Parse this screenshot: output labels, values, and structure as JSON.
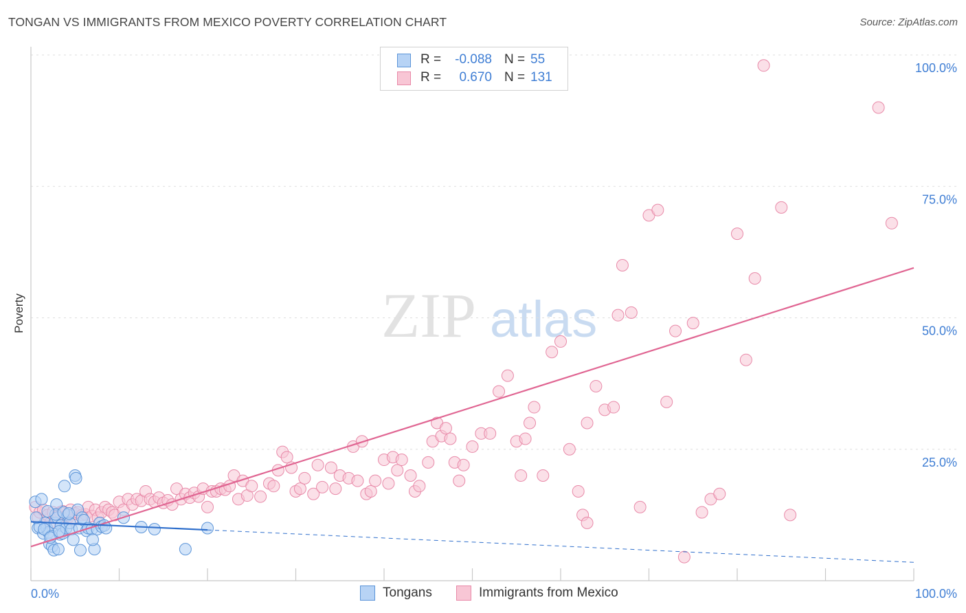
{
  "header": {
    "title": "TONGAN VS IMMIGRANTS FROM MEXICO POVERTY CORRELATION CHART",
    "source": "Source: ZipAtlas.com"
  },
  "watermark": {
    "zip": "ZIP",
    "atlas": "atlas"
  },
  "stats_legend": {
    "rows": [
      {
        "r_label": "R =",
        "r_value": "-0.088",
        "n_label": "N =",
        "n_value": "55"
      },
      {
        "r_label": "R =",
        "r_value": "0.670",
        "n_label": "N =",
        "n_value": "131"
      }
    ]
  },
  "bottom_legend": {
    "items": [
      "Tongans",
      "Immigrants from Mexico"
    ]
  },
  "colors": {
    "blue_fill": "#b7d3f5",
    "blue_stroke": "#5b94d8",
    "blue_line": "#2f6fcc",
    "pink_fill": "#f8c6d5",
    "pink_stroke": "#e889a8",
    "pink_line": "#e06592",
    "accent_text": "#3f7ed4"
  },
  "chart_data": {
    "type": "scatter",
    "ylabel": "Poverty",
    "xlim": [
      0,
      100
    ],
    "ylim": [
      0,
      100
    ],
    "x_tick_labels": [
      "0.0%",
      "100.0%"
    ],
    "y_tick_labels": [
      "100.0%",
      "75.0%",
      "50.0%",
      "25.0%"
    ],
    "y_ticks": [
      100,
      75,
      50,
      25
    ],
    "grid": true,
    "series": [
      {
        "name": "Tongans",
        "r": -0.088,
        "n": 55,
        "trend": {
          "x0": 0,
          "y0": 11.2,
          "x1": 100,
          "y1": 3.5,
          "solid_until": 20
        },
        "points": [
          [
            0.5,
            15
          ],
          [
            0.8,
            10
          ],
          [
            1.2,
            15.5
          ],
          [
            1.4,
            9
          ],
          [
            1.6,
            11
          ],
          [
            1.8,
            10
          ],
          [
            2,
            9.2
          ],
          [
            2.1,
            7
          ],
          [
            2.3,
            8.5
          ],
          [
            2.4,
            6.5
          ],
          [
            2.6,
            5.8
          ],
          [
            2.7,
            11
          ],
          [
            2.9,
            14.5
          ],
          [
            3,
            12
          ],
          [
            3.1,
            6
          ],
          [
            3.3,
            8.8
          ],
          [
            3.4,
            10.5
          ],
          [
            3.6,
            9
          ],
          [
            3.8,
            18
          ],
          [
            4,
            10
          ],
          [
            4.2,
            12.5
          ],
          [
            4.4,
            11
          ],
          [
            4.6,
            9.8
          ],
          [
            4.8,
            7.8
          ],
          [
            5,
            20
          ],
          [
            5.1,
            19.5
          ],
          [
            5.3,
            13.5
          ],
          [
            5.5,
            10
          ],
          [
            5.6,
            5.8
          ],
          [
            5.8,
            12
          ],
          [
            6,
            11.5
          ],
          [
            6.3,
            9.5
          ],
          [
            6.5,
            10
          ],
          [
            6.9,
            9.8
          ],
          [
            7.2,
            6
          ],
          [
            7.5,
            9.8
          ],
          [
            7.8,
            11
          ],
          [
            8,
            10.3
          ],
          [
            8.3,
            10.5
          ],
          [
            8.5,
            10
          ],
          [
            1,
            10.2
          ],
          [
            1.5,
            9.8
          ],
          [
            2.2,
            8.2
          ],
          [
            2.8,
            12.6
          ],
          [
            3.2,
            9.4
          ],
          [
            3.7,
            13
          ],
          [
            4.3,
            12.8
          ],
          [
            0.6,
            12
          ],
          [
            1.9,
            13.2
          ],
          [
            7,
            7.8
          ],
          [
            10.5,
            12
          ],
          [
            12.5,
            10.2
          ],
          [
            14,
            9.8
          ],
          [
            17.5,
            6
          ],
          [
            20,
            10
          ]
        ]
      },
      {
        "name": "Immigrants from Mexico",
        "r": 0.67,
        "n": 131,
        "trend": {
          "x0": 0,
          "y0": 6.5,
          "x1": 100,
          "y1": 59.5
        },
        "points": [
          [
            0.5,
            14
          ],
          [
            0.8,
            12
          ],
          [
            1,
            13
          ],
          [
            1.4,
            13.5
          ],
          [
            1.6,
            11
          ],
          [
            1.9,
            12.5
          ],
          [
            2.2,
            11
          ],
          [
            2.5,
            13
          ],
          [
            2.8,
            12
          ],
          [
            3.1,
            12.7
          ],
          [
            3.3,
            13
          ],
          [
            3.6,
            13.2
          ],
          [
            3.9,
            12.2
          ],
          [
            4.2,
            12
          ],
          [
            4.5,
            13.5
          ],
          [
            4.7,
            11.5
          ],
          [
            5,
            12.8
          ],
          [
            5.3,
            13
          ],
          [
            5.8,
            12.5
          ],
          [
            6.2,
            12.6
          ],
          [
            6.5,
            14
          ],
          [
            6.9,
            12.3
          ],
          [
            7.3,
            13.5
          ],
          [
            7.6,
            12
          ],
          [
            8,
            13
          ],
          [
            8.4,
            14
          ],
          [
            8.8,
            13.5
          ],
          [
            9.2,
            13
          ],
          [
            9.5,
            12.5
          ],
          [
            10,
            15
          ],
          [
            10.5,
            13.5
          ],
          [
            11,
            15.5
          ],
          [
            11.5,
            14.5
          ],
          [
            12,
            15.5
          ],
          [
            12.5,
            15.2
          ],
          [
            13,
            17
          ],
          [
            13.5,
            15.5
          ],
          [
            14,
            15
          ],
          [
            14.5,
            15.8
          ],
          [
            15,
            14.8
          ],
          [
            15.5,
            15.3
          ],
          [
            16,
            14.5
          ],
          [
            16.5,
            17.5
          ],
          [
            17,
            15.5
          ],
          [
            17.5,
            16.5
          ],
          [
            18,
            15.8
          ],
          [
            18.5,
            16.7
          ],
          [
            19,
            16
          ],
          [
            19.5,
            17.5
          ],
          [
            20,
            14
          ],
          [
            20.5,
            17
          ],
          [
            21,
            17
          ],
          [
            21.5,
            17.5
          ],
          [
            22,
            17.3
          ],
          [
            22.5,
            18
          ],
          [
            23,
            20
          ],
          [
            23.5,
            15.5
          ],
          [
            24,
            19
          ],
          [
            24.5,
            16.2
          ],
          [
            25,
            18
          ],
          [
            26,
            16
          ],
          [
            27,
            18.5
          ],
          [
            27.5,
            18
          ],
          [
            28,
            21
          ],
          [
            28.5,
            24.5
          ],
          [
            29,
            23.5
          ],
          [
            29.5,
            21.5
          ],
          [
            30,
            17
          ],
          [
            30.5,
            17.5
          ],
          [
            31,
            19.5
          ],
          [
            32,
            16.5
          ],
          [
            32.5,
            22
          ],
          [
            33,
            17.8
          ],
          [
            34,
            21.5
          ],
          [
            34.5,
            17.5
          ],
          [
            35,
            20
          ],
          [
            36,
            19.5
          ],
          [
            36.5,
            25.5
          ],
          [
            37,
            19
          ],
          [
            37.5,
            26.5
          ],
          [
            38,
            16.5
          ],
          [
            38.5,
            17
          ],
          [
            39,
            19
          ],
          [
            40,
            23
          ],
          [
            40.5,
            18.5
          ],
          [
            41,
            23.5
          ],
          [
            41.5,
            21
          ],
          [
            42,
            23
          ],
          [
            43,
            20
          ],
          [
            43.5,
            17
          ],
          [
            44,
            18
          ],
          [
            45,
            22.5
          ],
          [
            45.5,
            26.5
          ],
          [
            46,
            30
          ],
          [
            46.5,
            27.5
          ],
          [
            47,
            29
          ],
          [
            47.5,
            27
          ],
          [
            48,
            22.5
          ],
          [
            48.5,
            19
          ],
          [
            49,
            22
          ],
          [
            50,
            25.5
          ],
          [
            51,
            28
          ],
          [
            52,
            28
          ],
          [
            53,
            36
          ],
          [
            54,
            39
          ],
          [
            55,
            26.5
          ],
          [
            55.5,
            20
          ],
          [
            56,
            27
          ],
          [
            56.5,
            30
          ],
          [
            57,
            33
          ],
          [
            58,
            20
          ],
          [
            59,
            43.5
          ],
          [
            60,
            45.5
          ],
          [
            61,
            25
          ],
          [
            62,
            17
          ],
          [
            62.5,
            12.5
          ],
          [
            63,
            30
          ],
          [
            63,
            11
          ],
          [
            64,
            37
          ],
          [
            65,
            32.5
          ],
          [
            66,
            33
          ],
          [
            66.5,
            50.5
          ],
          [
            67,
            60
          ],
          [
            68,
            51
          ],
          [
            69,
            14
          ],
          [
            70,
            69.5
          ],
          [
            71,
            70.5
          ],
          [
            72,
            34
          ],
          [
            73,
            47.5
          ],
          [
            74,
            4.5
          ],
          [
            75,
            49
          ],
          [
            76,
            13
          ],
          [
            77,
            15.5
          ],
          [
            78,
            16.5
          ],
          [
            80,
            66
          ],
          [
            81,
            42
          ],
          [
            82,
            57.5
          ],
          [
            83,
            98
          ],
          [
            85,
            71
          ],
          [
            86,
            12.5
          ],
          [
            96,
            90
          ],
          [
            97.5,
            68
          ]
        ]
      }
    ]
  }
}
